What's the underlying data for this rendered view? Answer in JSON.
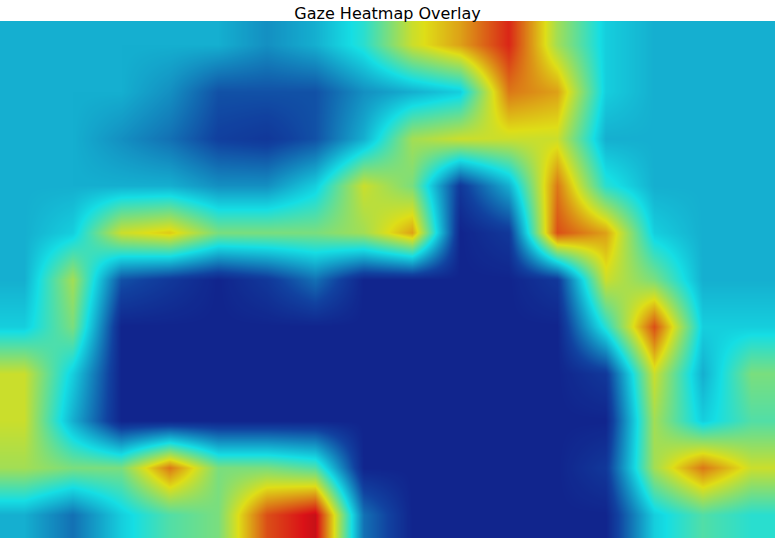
{
  "chart_data": {
    "type": "heatmap",
    "title": "Gaze Heatmap Overlay",
    "color": "Jet",
    "zlim": [
      0,
      1
    ],
    "xlim": [
      -0.5,
      15.5
    ],
    "ylim": [
      10.5,
      -0.5
    ],
    "tick_labels": false,
    "cells": [
      [
        0.3,
        0.3,
        0.3,
        0.3,
        0.3,
        0.25,
        0.3,
        0.4,
        0.6,
        0.7,
        0.85,
        0.55,
        0.35,
        0.3,
        0.3,
        0.3
      ],
      [
        0.3,
        0.3,
        0.3,
        0.25,
        0.15,
        0.15,
        0.15,
        0.25,
        0.3,
        0.35,
        0.75,
        0.7,
        0.35,
        0.3,
        0.3,
        0.3
      ],
      [
        0.3,
        0.3,
        0.25,
        0.2,
        0.12,
        0.1,
        0.15,
        0.3,
        0.55,
        0.6,
        0.6,
        0.6,
        0.3,
        0.3,
        0.3,
        0.3
      ],
      [
        0.3,
        0.3,
        0.3,
        0.3,
        0.25,
        0.25,
        0.35,
        0.6,
        0.5,
        0.1,
        0.3,
        0.75,
        0.4,
        0.3,
        0.3,
        0.3
      ],
      [
        0.3,
        0.35,
        0.6,
        0.65,
        0.5,
        0.5,
        0.5,
        0.55,
        0.7,
        0.05,
        0.1,
        0.8,
        0.7,
        0.35,
        0.3,
        0.3
      ],
      [
        0.3,
        0.55,
        0.15,
        0.1,
        0.05,
        0.1,
        0.2,
        0.05,
        0.05,
        0.05,
        0.05,
        0.1,
        0.6,
        0.5,
        0.3,
        0.3
      ],
      [
        0.35,
        0.5,
        0.05,
        0.05,
        0.05,
        0.05,
        0.05,
        0.05,
        0.05,
        0.05,
        0.05,
        0.05,
        0.4,
        0.8,
        0.35,
        0.35
      ],
      [
        0.6,
        0.35,
        0.05,
        0.05,
        0.05,
        0.05,
        0.05,
        0.05,
        0.05,
        0.05,
        0.05,
        0.05,
        0.1,
        0.6,
        0.3,
        0.5
      ],
      [
        0.6,
        0.3,
        0.05,
        0.05,
        0.05,
        0.05,
        0.05,
        0.05,
        0.05,
        0.05,
        0.05,
        0.05,
        0.05,
        0.55,
        0.35,
        0.45
      ],
      [
        0.55,
        0.5,
        0.5,
        0.75,
        0.5,
        0.5,
        0.45,
        0.05,
        0.05,
        0.05,
        0.05,
        0.05,
        0.1,
        0.55,
        0.75,
        0.6
      ],
      [
        0.3,
        0.2,
        0.35,
        0.45,
        0.5,
        0.8,
        0.9,
        0.2,
        0.05,
        0.05,
        0.05,
        0.05,
        0.05,
        0.35,
        0.45,
        0.4
      ]
    ]
  }
}
